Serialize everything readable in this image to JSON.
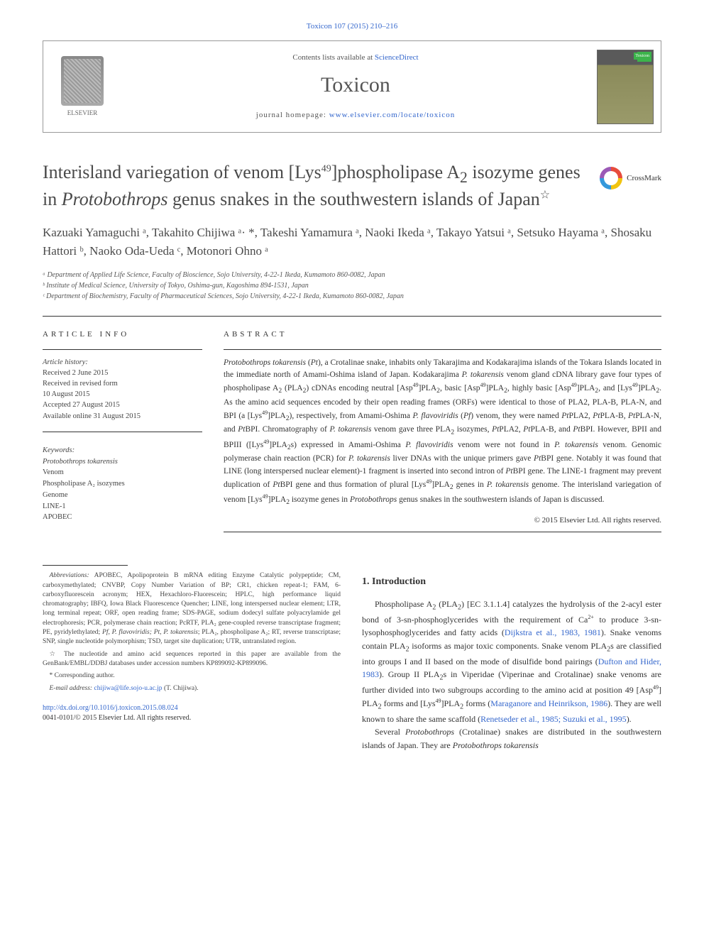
{
  "citation": "Toxicon 107 (2015) 210–216",
  "header": {
    "contents_prefix": "Contents lists available at ",
    "contents_link": "ScienceDirect",
    "journal_name": "Toxicon",
    "homepage_prefix": "journal homepage: ",
    "homepage_link": "www.elsevier.com/locate/toxicon",
    "publisher": "ELSEVIER",
    "cover_label": "Toxicon"
  },
  "crossmark_label": "CrossMark",
  "title": {
    "pre": "Interisland variegation of venom [Lys",
    "sup1": "49",
    "mid1": "]phospholipase A",
    "sub1": "2",
    "mid2": " isozyme genes in ",
    "ital": "Protobothrops",
    "post": " genus snakes in the southwestern islands of Japan",
    "star": "☆"
  },
  "authors_line": "Kazuaki Yamaguchi ᵃ, Takahito Chijiwa ᵃ· *, Takeshi Yamamura ᵃ, Naoki Ikeda ᵃ, Takayo Yatsui ᵃ, Setsuko Hayama ᵃ, Shosaku Hattori ᵇ, Naoko Oda-Ueda ᶜ, Motonori Ohno ᵃ",
  "affiliations": [
    "ᵃ Department of Applied Life Science, Faculty of Bioscience, Sojo University, 4-22-1 Ikeda, Kumamoto 860-0082, Japan",
    "ᵇ Institute of Medical Science, University of Tokyo, Oshima-gun, Kagoshima 894-1531, Japan",
    "ᶜ Department of Biochemistry, Faculty of Pharmaceutical Sciences, Sojo University, 4-22-1 Ikeda, Kumamoto 860-0082, Japan"
  ],
  "article_info": {
    "heading": "ARTICLE INFO",
    "history_label": "Article history:",
    "received": "Received 2 June 2015",
    "revised_label": "Received in revised form",
    "revised_date": "10 August 2015",
    "accepted": "Accepted 27 August 2015",
    "available": "Available online 31 August 2015"
  },
  "keywords": {
    "label": "Keywords:",
    "items": [
      "Protobothrops tokarensis",
      "Venom",
      "Phospholipase A₂ isozymes",
      "Genome",
      "LINE-1",
      "APOBEC"
    ]
  },
  "abstract": {
    "heading": "ABSTRACT",
    "body_html": "<em>Protobothrops tokarensis</em> (<em>Pt</em>), a Crotalinae snake, inhabits only Takarajima and Kodakarajima islands of the Tokara Islands located in the immediate north of Amami-Oshima island of Japan. Kodakarajima <em>P. tokarensis</em> venom gland cDNA library gave four types of phospholipase A<sub>2</sub> (PLA<sub>2</sub>) cDNAs encoding neutral [Asp<sup>49</sup>]PLA<sub>2</sub>, basic [Asp<sup>49</sup>]PLA<sub>2</sub>, highly basic [Asp<sup>49</sup>]PLA<sub>2</sub>, and [Lys<sup>49</sup>]PLA<sub>2</sub>. As the amino acid sequences encoded by their open reading frames (ORFs) were identical to those of PLA2, PLA-B, PLA-N, and BPI (a [Lys<sup>49</sup>]PLA<sub>2</sub>), respectively, from Amami-Oshima <em>P. flavoviridis</em> (<em>Pf</em>) venom, they were named <em>Pt</em>PLA2, <em>Pt</em>PLA-B, <em>Pt</em>PLA-N, and <em>Pt</em>BPI. Chromatography of <em>P. tokarensis</em> venom gave three PLA<sub>2</sub> isozymes, <em>Pt</em>PLA2, <em>Pt</em>PLA-B, and <em>Pt</em>BPI. However, BPII and BPIII ([Lys<sup>49</sup>]PLA<sub>2</sub>s) expressed in Amami-Oshima <em>P. flavoviridis</em> venom were not found in <em>P. tokarensis</em> venom. Genomic polymerase chain reaction (PCR) for <em>P. tokarensis</em> liver DNAs with the unique primers gave <em>Pt</em>BPI gene. Notably it was found that LINE (long interspersed nuclear element)-1 fragment is inserted into second intron of <em>Pt</em>BPI gene. The LINE-1 fragment may prevent duplication of <em>Pt</em>BPI gene and thus formation of plural [Lys<sup>49</sup>]PLA<sub>2</sub> genes in <em>P. tokarensis</em> genome. The interisland variegation of venom [Lys<sup>49</sup>]PLA<sub>2</sub> isozyme genes in <em>Protobothrops</em> genus snakes in the southwestern islands of Japan is discussed.",
    "copyright": "© 2015 Elsevier Ltd. All rights reserved."
  },
  "intro": {
    "heading": "1.  Introduction",
    "p1_html": "Phospholipase A<sub>2</sub> (PLA<sub>2</sub>) [EC 3.1.1.4] catalyzes the hydrolysis of the 2-acyl ester bond of 3-sn-phosphoglycerides with the requirement of Ca<sup>2+</sup> to produce 3-sn-lysophosphoglycerides and fatty acids (<a>Dijkstra et al., 1983, 1981</a>). Snake venoms contain PLA<sub>2</sub> isoforms as major toxic components. Snake venom PLA<sub>2</sub>s are classified into groups I and II based on the mode of disulfide bond pairings (<a>Dufton and Hider, 1983</a>). Group II PLA<sub>2</sub>s in Viperidae (Viperinae and Crotalinae) snake venoms are further divided into two subgroups according to the amino acid at position 49 [Asp<sup>49</sup>] PLA<sub>2</sub> forms and [Lys<sup>49</sup>]PLA<sub>2</sub> forms (<a>Maraganore and Heinrikson, 1986</a>). They are well known to share the same scaffold (<a>Renetseder et al., 1985; Suzuki et al., 1995</a>).",
    "p2_html": "Several <em>Protobothrops</em> (Crotalinae) snakes are distributed in the southwestern islands of Japan. They are <em>Protobothrops tokarensis</em>"
  },
  "footnotes": {
    "abbrev_label": "Abbreviations:",
    "abbrev_text": " APOBEC, Apolipoprotein B mRNA editing Enzyme Catalytic polypeptide; CM, carboxymethylated; CNVBP, Copy Number Variation of BP; CR1, chicken repeat-1; FAM, 6-carboxyfluorescein acronym; HEX, Hexachloro-Fluorescein; HPLC, high performance liquid chromatography; IBFQ, Iowa Black Fluorescence Quencher; LINE, long interspersed nuclear element; LTR, long terminal repeat; ORF, open reading frame; SDS-PAGE, sodium dodecyl sulfate polyacrylamide gel electrophoresis; PCR, polymerase chain reaction; PcRTF, PLA₂ gene-coupled reverse transcriptase fragment; PE, pyridylethylated; ",
    "abbrev_ital": "Pf, P. flavoviridis; Pt, P. tokarensis",
    "abbrev_tail": "; PLA₂, phospholipase A₂; RT, reverse transcriptase; SNP, single nucleotide polymorphism; TSD, target site duplication; UTR, untranslated region.",
    "star_note": "☆ The nucleotide and amino acid sequences reported in this paper are available from the GenBank/EMBL/DDBJ databases under accession numbers KP899092-KP899096.",
    "corresponding": "* Corresponding author.",
    "email_label": "E-mail address: ",
    "email_link": "chijiwa@life.sojo-u.ac.jp",
    "email_suffix": " (T. Chijiwa)."
  },
  "doi": {
    "link": "http://dx.doi.org/10.1016/j.toxicon.2015.08.024",
    "issn_line": "0041-0101/© 2015 Elsevier Ltd. All rights reserved."
  },
  "colors": {
    "link": "#3366cc",
    "text": "#333333",
    "heading": "#4a4a4a"
  }
}
